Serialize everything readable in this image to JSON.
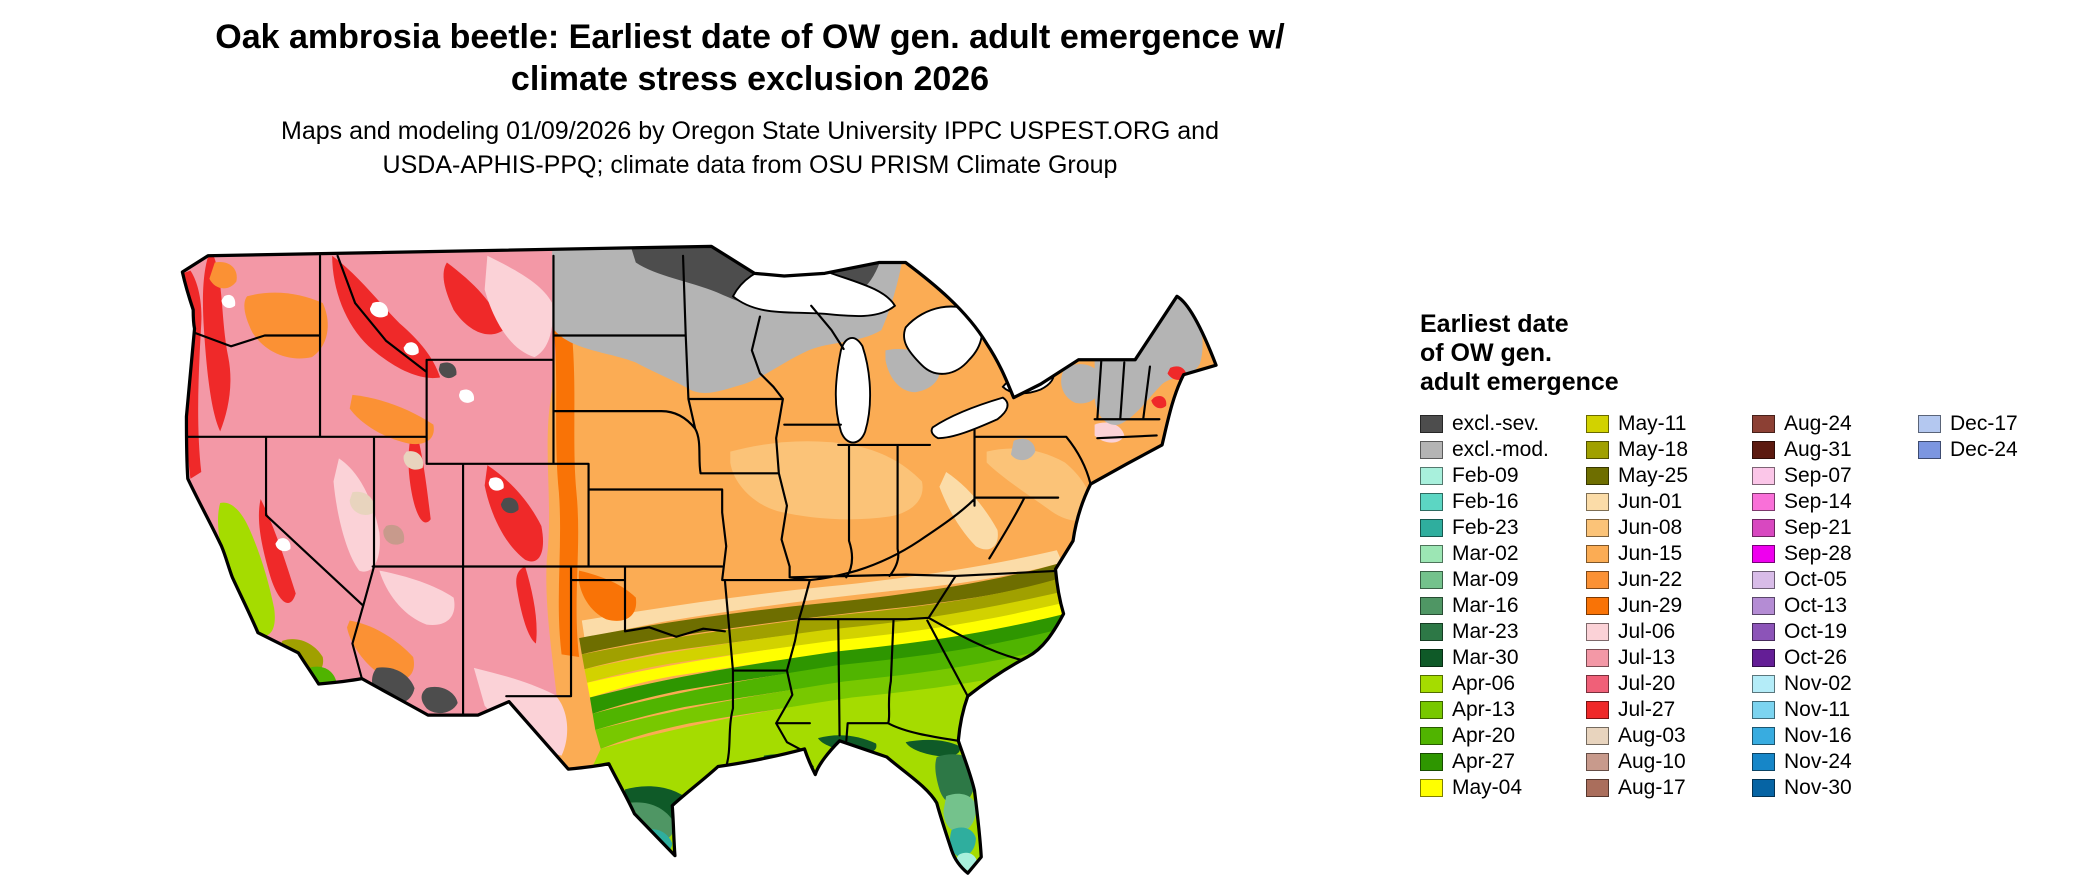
{
  "title": {
    "line1": "Oak ambrosia beetle: Earliest date of OW gen. adult emergence w/",
    "line2": "climate stress exclusion 2026"
  },
  "subtitle": {
    "line1": "Maps and modeling 01/09/2026 by Oregon State University IPPC USPEST.ORG and",
    "line2": "USDA-APHIS-PPQ; climate data from OSU PRISM Climate Group"
  },
  "legend": {
    "title_lines": [
      "Earliest date",
      "of OW gen.",
      "adult emergence"
    ],
    "columns": [
      {
        "entries": [
          {
            "label": "excl.-sev.",
            "color": "#4D4D4D"
          },
          {
            "label": "excl.-mod.",
            "color": "#B4B4B4"
          },
          {
            "label": "Feb-09",
            "color": "#A8F0DC"
          },
          {
            "label": "Feb-16",
            "color": "#5CD6C3"
          },
          {
            "label": "Feb-23",
            "color": "#2FAE9E"
          },
          {
            "label": "Mar-02",
            "color": "#9CE6B4"
          },
          {
            "label": "Mar-09",
            "color": "#74C28C"
          },
          {
            "label": "Mar-16",
            "color": "#4F9664"
          },
          {
            "label": "Mar-23",
            "color": "#2D7846"
          },
          {
            "label": "Mar-30",
            "color": "#0F5A28"
          },
          {
            "label": "Apr-06",
            "color": "#A5DC00"
          },
          {
            "label": "Apr-13",
            "color": "#78C800"
          },
          {
            "label": "Apr-20",
            "color": "#50B400"
          },
          {
            "label": "Apr-27",
            "color": "#2E9600"
          },
          {
            "label": "May-04",
            "color": "#FFFF00"
          }
        ]
      },
      {
        "entries": [
          {
            "label": "May-11",
            "color": "#D2D200"
          },
          {
            "label": "May-18",
            "color": "#A0A000"
          },
          {
            "label": "May-25",
            "color": "#6E6E00"
          },
          {
            "label": "Jun-01",
            "color": "#FBDCA8"
          },
          {
            "label": "Jun-08",
            "color": "#FBC378"
          },
          {
            "label": "Jun-15",
            "color": "#FBAC54"
          },
          {
            "label": "Jun-22",
            "color": "#FB9134"
          },
          {
            "label": "Jun-29",
            "color": "#F97306"
          },
          {
            "label": "Jul-06",
            "color": "#FBD2D7"
          },
          {
            "label": "Jul-13",
            "color": "#F398A6"
          },
          {
            "label": "Jul-20",
            "color": "#F06078"
          },
          {
            "label": "Jul-27",
            "color": "#EF2929"
          },
          {
            "label": "Aug-03",
            "color": "#E8D4BE"
          },
          {
            "label": "Aug-10",
            "color": "#C89A8C"
          },
          {
            "label": "Aug-17",
            "color": "#AA6E5C"
          }
        ]
      },
      {
        "entries": [
          {
            "label": "Aug-24",
            "color": "#8C4034"
          },
          {
            "label": "Aug-31",
            "color": "#5C1A10"
          },
          {
            "label": "Sep-07",
            "color": "#FBC6E8"
          },
          {
            "label": "Sep-14",
            "color": "#F970D8"
          },
          {
            "label": "Sep-21",
            "color": "#D848C0"
          },
          {
            "label": "Sep-28",
            "color": "#EE00EE"
          },
          {
            "label": "Oct-05",
            "color": "#D8BCE8"
          },
          {
            "label": "Oct-13",
            "color": "#B48CD4"
          },
          {
            "label": "Oct-19",
            "color": "#8C54B8"
          },
          {
            "label": "Oct-26",
            "color": "#641E96"
          },
          {
            "label": "Nov-02",
            "color": "#B4ECF8"
          },
          {
            "label": "Nov-11",
            "color": "#7CD4F0"
          },
          {
            "label": "Nov-16",
            "color": "#38ACE0"
          },
          {
            "label": "Nov-24",
            "color": "#1686C8"
          },
          {
            "label": "Nov-30",
            "color": "#0664A4"
          }
        ]
      },
      {
        "entries": [
          {
            "label": "Dec-17",
            "color": "#B4C8F0"
          },
          {
            "label": "Dec-24",
            "color": "#7C96E0"
          }
        ]
      }
    ]
  }
}
